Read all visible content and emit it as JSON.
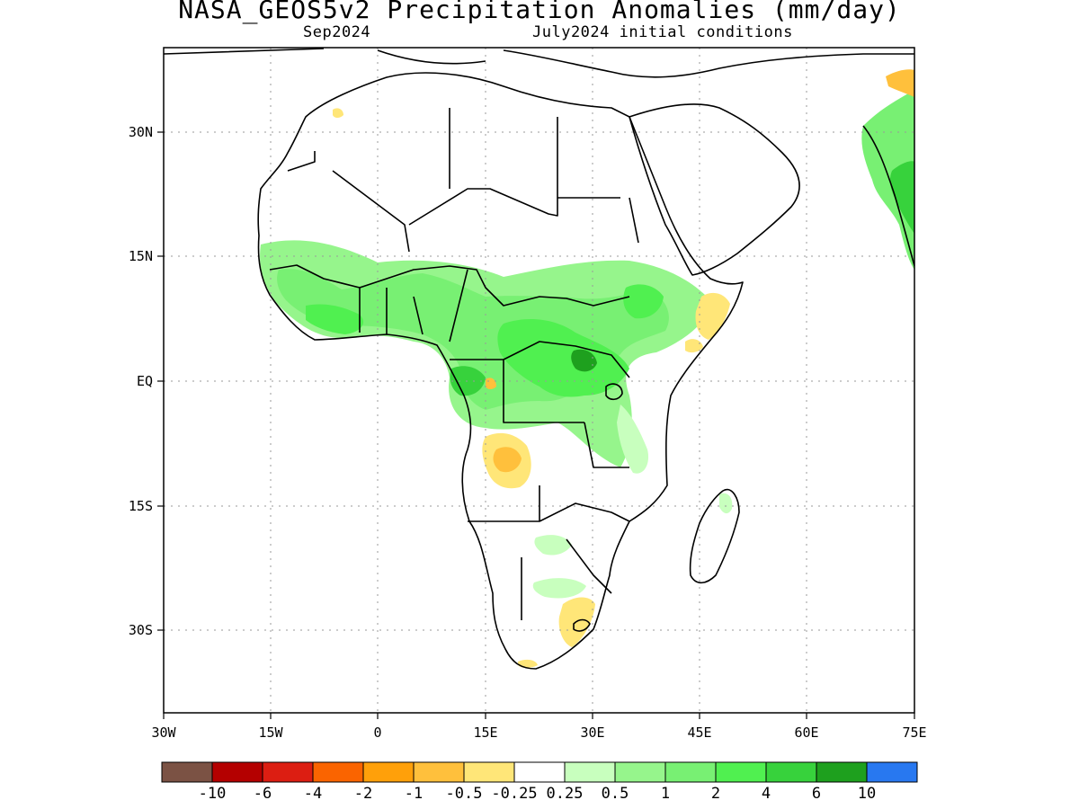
{
  "header": {
    "title": "NASA_GEOS5v2 Precipitation Anomalies (mm/day)",
    "valid_month": "Sep2024",
    "initial_conditions": "July2024 initial conditions"
  },
  "map": {
    "region": "Africa",
    "lon_range": [
      -30,
      75
    ],
    "lat_range": [
      -40,
      40
    ],
    "x_ticks": [
      {
        "lon": -30,
        "label": "30W"
      },
      {
        "lon": -15,
        "label": "15W"
      },
      {
        "lon": 0,
        "label": "0"
      },
      {
        "lon": 15,
        "label": "15E"
      },
      {
        "lon": 30,
        "label": "30E"
      },
      {
        "lon": 45,
        "label": "45E"
      },
      {
        "lon": 60,
        "label": "60E"
      },
      {
        "lon": 75,
        "label": "75E"
      }
    ],
    "y_ticks": [
      {
        "lat": 30,
        "label": "30N"
      },
      {
        "lat": 15,
        "label": "15N"
      },
      {
        "lat": 0,
        "label": "EQ"
      },
      {
        "lat": -15,
        "label": "15S"
      },
      {
        "lat": -30,
        "label": "30S"
      }
    ],
    "grid": true,
    "grid_style": "dotted"
  },
  "colorbar": {
    "colors": [
      "#7b5244",
      "#b40000",
      "#dc1e12",
      "#fa6400",
      "#ffa00a",
      "#ffc03c",
      "#ffe678",
      "#ffffff",
      "#c8ffbe",
      "#96f58c",
      "#78f073",
      "#50f050",
      "#37d23c",
      "#1ea01e",
      "#2878f0"
    ],
    "boundaries": [
      "-10",
      "-6",
      "-4",
      "-2",
      "-1",
      "-0.5",
      "-0.25",
      "0.25",
      "0.5",
      "1",
      "2",
      "4",
      "6",
      "10"
    ]
  },
  "anomalies": {
    "wet": [
      {
        "name": "Sahel belt",
        "level": "1 to 2"
      },
      {
        "name": "Central Africa / Congo basin",
        "level": "2 to 4"
      },
      {
        "name": "Ethiopian highlands",
        "level": "1 to 2"
      },
      {
        "name": "Western India coast",
        "level": "1 to 4"
      }
    ],
    "dry": [
      {
        "name": "Angola",
        "level": "-1 to -0.25"
      },
      {
        "name": "Horn of Africa",
        "level": "-1 to -0.25"
      },
      {
        "name": "South Africa east",
        "level": "-0.5 to -0.25"
      }
    ]
  }
}
